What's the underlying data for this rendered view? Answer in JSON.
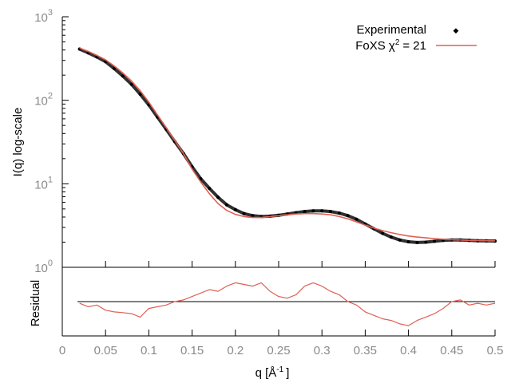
{
  "chart_data": [
    {
      "type": "scatter",
      "ylabel": "I(q) log-scale",
      "y_scale": "log",
      "xlim": [
        0,
        0.5
      ],
      "ylim": [
        1,
        1000
      ],
      "x_ticks": [
        "0",
        "0.05",
        "0.1",
        "0.15",
        "0.2",
        "0.25",
        "0.3",
        "0.35",
        "0.4",
        "0.45",
        "0.5"
      ],
      "y_ticks": [
        {
          "value": 1,
          "base": "10",
          "exp": "0"
        },
        {
          "value": 10,
          "base": "10",
          "exp": "1"
        },
        {
          "value": 100,
          "base": "10",
          "exp": "2"
        },
        {
          "value": 1000,
          "base": "10",
          "exp": "3"
        }
      ],
      "legend_position": "top-right",
      "series": [
        {
          "name": "Experimental",
          "legend_label": "Experimental",
          "marker": "point",
          "color": "#000000",
          "x": [
            0.02,
            0.03,
            0.04,
            0.05,
            0.06,
            0.07,
            0.08,
            0.09,
            0.1,
            0.11,
            0.12,
            0.13,
            0.14,
            0.15,
            0.16,
            0.17,
            0.18,
            0.19,
            0.2,
            0.21,
            0.22,
            0.23,
            0.24,
            0.25,
            0.26,
            0.27,
            0.28,
            0.29,
            0.3,
            0.31,
            0.32,
            0.33,
            0.34,
            0.35,
            0.36,
            0.37,
            0.38,
            0.39,
            0.4,
            0.41,
            0.42,
            0.43,
            0.44,
            0.45,
            0.46,
            0.47,
            0.48,
            0.49,
            0.5
          ],
          "y": [
            410,
            370,
            330,
            290,
            240,
            195,
            155,
            118,
            88,
            63,
            45,
            32,
            23,
            16,
            11.5,
            8.8,
            6.9,
            5.6,
            4.9,
            4.4,
            4.15,
            4.05,
            4.1,
            4.2,
            4.35,
            4.5,
            4.65,
            4.75,
            4.75,
            4.65,
            4.45,
            4.15,
            3.75,
            3.3,
            2.9,
            2.55,
            2.3,
            2.12,
            2.02,
            1.98,
            2.0,
            2.05,
            2.1,
            2.12,
            2.12,
            2.1,
            2.08,
            2.07,
            2.06
          ]
        },
        {
          "name": "FoXS",
          "legend_label": "FoXS χ",
          "legend_sup": "2",
          "legend_tail": "= 21",
          "marker": "line",
          "color": "#e06055",
          "x": [
            0.02,
            0.03,
            0.04,
            0.05,
            0.06,
            0.07,
            0.08,
            0.09,
            0.1,
            0.11,
            0.12,
            0.13,
            0.14,
            0.15,
            0.16,
            0.17,
            0.18,
            0.19,
            0.2,
            0.21,
            0.22,
            0.23,
            0.24,
            0.25,
            0.26,
            0.27,
            0.28,
            0.29,
            0.3,
            0.31,
            0.32,
            0.33,
            0.34,
            0.35,
            0.36,
            0.37,
            0.38,
            0.39,
            0.4,
            0.41,
            0.42,
            0.43,
            0.44,
            0.45,
            0.46,
            0.47,
            0.48,
            0.49,
            0.5
          ],
          "y": [
            420,
            385,
            345,
            305,
            258,
            212,
            170,
            130,
            95,
            67,
            47,
            33,
            23,
            15,
            10.5,
            7.6,
            5.8,
            4.8,
            4.3,
            4.05,
            3.95,
            3.95,
            4.05,
            4.15,
            4.25,
            4.35,
            4.4,
            4.4,
            4.35,
            4.25,
            4.05,
            3.8,
            3.5,
            3.2,
            2.95,
            2.75,
            2.6,
            2.47,
            2.37,
            2.3,
            2.25,
            2.21,
            2.17,
            2.14,
            2.12,
            2.1,
            2.09,
            2.08,
            2.07
          ]
        }
      ]
    },
    {
      "type": "line",
      "xlabel": "q [Å",
      "xlabel_sup": "-1",
      "xlabel_tail": "]",
      "ylabel": "Residual",
      "xlim": [
        0,
        0.5
      ],
      "x_ticks": [
        "0",
        "0.05",
        "0.1",
        "0.15",
        "0.2",
        "0.25",
        "0.3",
        "0.35",
        "0.4",
        "0.45",
        "0.5"
      ],
      "ylim": [
        -1,
        1
      ],
      "zero_line": true,
      "series": [
        {
          "color": "#e06055",
          "x": [
            0.02,
            0.03,
            0.04,
            0.05,
            0.06,
            0.07,
            0.08,
            0.09,
            0.1,
            0.11,
            0.12,
            0.13,
            0.14,
            0.15,
            0.16,
            0.17,
            0.18,
            0.19,
            0.2,
            0.21,
            0.22,
            0.23,
            0.24,
            0.25,
            0.26,
            0.27,
            0.28,
            0.29,
            0.3,
            0.31,
            0.32,
            0.33,
            0.34,
            0.35,
            0.36,
            0.37,
            0.38,
            0.39,
            0.4,
            0.41,
            0.42,
            0.43,
            0.44,
            0.45,
            0.46,
            0.47,
            0.48,
            0.49,
            0.5
          ],
          "y": [
            -0.05,
            -0.15,
            -0.1,
            -0.25,
            -0.3,
            -0.32,
            -0.35,
            -0.45,
            -0.2,
            -0.15,
            -0.1,
            0.0,
            0.05,
            0.15,
            0.25,
            0.35,
            0.3,
            0.45,
            0.55,
            0.5,
            0.45,
            0.55,
            0.3,
            0.15,
            0.1,
            0.2,
            0.45,
            0.55,
            0.45,
            0.3,
            0.2,
            0.0,
            -0.1,
            -0.3,
            -0.4,
            -0.5,
            -0.55,
            -0.65,
            -0.7,
            -0.55,
            -0.45,
            -0.35,
            -0.2,
            0.0,
            0.05,
            -0.1,
            -0.05,
            -0.1,
            -0.05
          ]
        }
      ]
    }
  ]
}
